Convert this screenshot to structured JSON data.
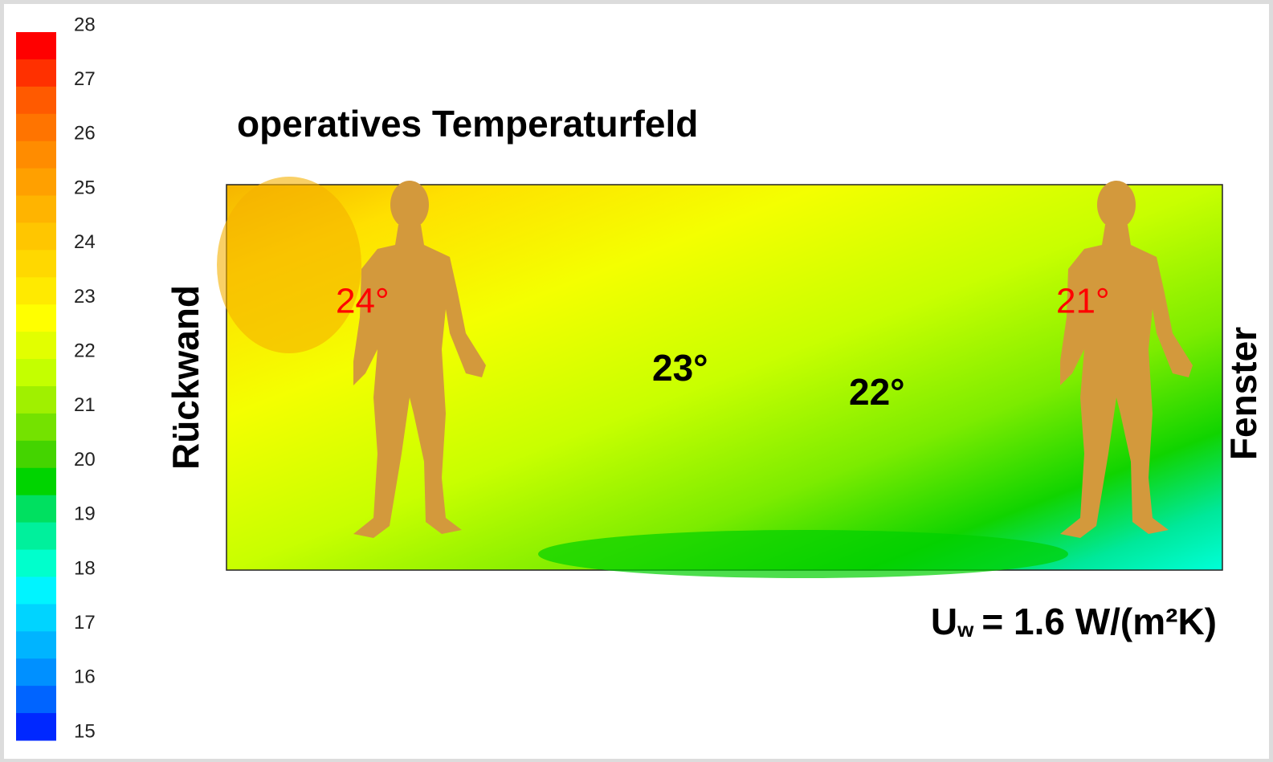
{
  "chart_data": {
    "type": "contour",
    "title": "operatives Temperaturfeld",
    "left_label": "Rückwand",
    "right_label": "Fenster",
    "note_symbol": "U",
    "note_subscript": "w",
    "note_rest": "= 1.6 W/(m²K)",
    "colorbar_lim": [
      15,
      28
    ],
    "colorbar_ticks": [
      15,
      16,
      17,
      18,
      19,
      20,
      21,
      22,
      23,
      24,
      25,
      26,
      27,
      28
    ],
    "colorbar_colors": [
      "#ff0000",
      "#ff3000",
      "#ff5a00",
      "#ff7400",
      "#ff8c00",
      "#ffa000",
      "#ffb400",
      "#ffc600",
      "#ffd800",
      "#ffea00",
      "#ffff00",
      "#e2ff00",
      "#c4ff00",
      "#a0f000",
      "#74e200",
      "#44d400",
      "#00d400",
      "#00e060",
      "#00f09c",
      "#00ffcc",
      "#00f4ff",
      "#00d4ff",
      "#00b4ff",
      "#0090ff",
      "#0064ff",
      "#0028ff"
    ],
    "annotations": [
      {
        "text": "24°",
        "color": "#ff0000",
        "bold": false
      },
      {
        "text": "21°",
        "color": "#ff0000",
        "bold": false
      },
      {
        "text": "23°",
        "color": "#000000",
        "bold": true
      },
      {
        "text": "22°",
        "color": "#000000",
        "bold": true
      }
    ]
  }
}
